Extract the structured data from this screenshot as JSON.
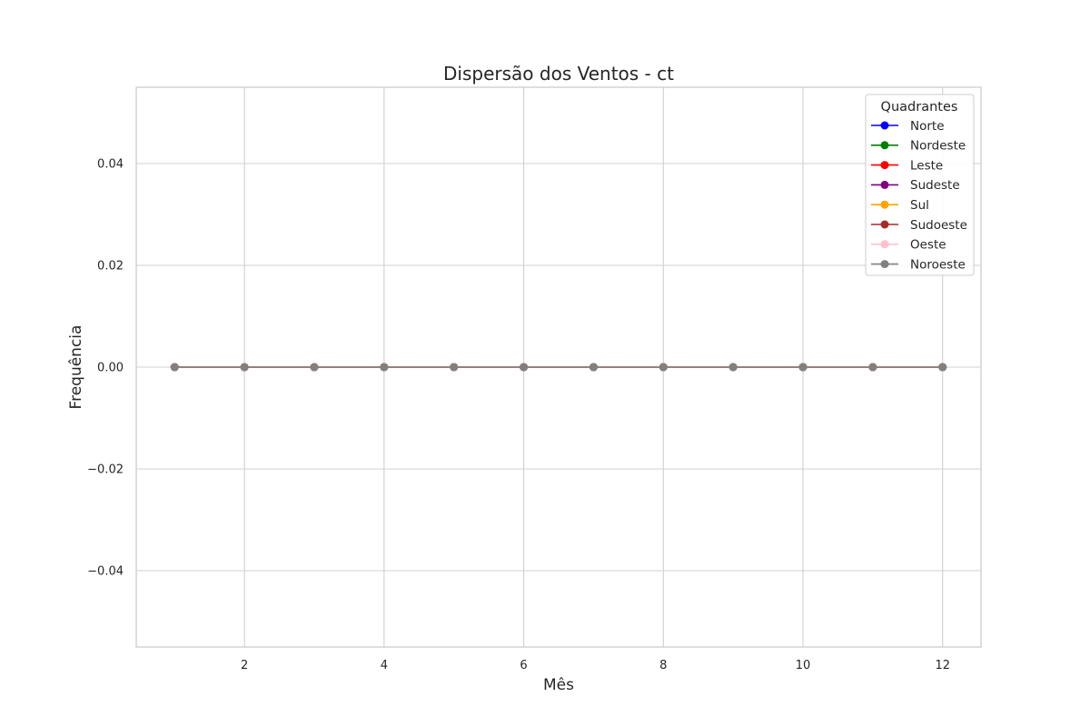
{
  "chart_data": {
    "type": "line",
    "title": "Dispersão dos Ventos - ct",
    "xlabel": "Mês",
    "ylabel": "Frequência",
    "xlim": [
      0.45,
      12.55
    ],
    "ylim": [
      -0.055,
      0.055
    ],
    "x_ticks": [
      2,
      4,
      6,
      8,
      10,
      12
    ],
    "x_tick_labels": [
      "2",
      "4",
      "6",
      "8",
      "10",
      "12"
    ],
    "y_ticks": [
      -0.04,
      -0.02,
      0.0,
      0.02,
      0.04
    ],
    "y_tick_labels": [
      "−0.04",
      "−0.02",
      "0.00",
      "0.02",
      "0.04"
    ],
    "grid": true,
    "legend": {
      "title": "Quadrantes",
      "placement": "top-right"
    },
    "x": [
      1,
      2,
      3,
      4,
      5,
      6,
      7,
      8,
      9,
      10,
      11,
      12
    ],
    "series": [
      {
        "name": "Norte",
        "color": "#0000ff",
        "values": [
          0,
          0,
          0,
          0,
          0,
          0,
          0,
          0,
          0,
          0,
          0,
          0
        ]
      },
      {
        "name": "Nordeste",
        "color": "#008000",
        "values": [
          0,
          0,
          0,
          0,
          0,
          0,
          0,
          0,
          0,
          0,
          0,
          0
        ]
      },
      {
        "name": "Leste",
        "color": "#ff0000",
        "values": [
          0,
          0,
          0,
          0,
          0,
          0,
          0,
          0,
          0,
          0,
          0,
          0
        ]
      },
      {
        "name": "Sudeste",
        "color": "#800080",
        "values": [
          0,
          0,
          0,
          0,
          0,
          0,
          0,
          0,
          0,
          0,
          0,
          0
        ]
      },
      {
        "name": "Sul",
        "color": "#ffa500",
        "values": [
          0,
          0,
          0,
          0,
          0,
          0,
          0,
          0,
          0,
          0,
          0,
          0
        ]
      },
      {
        "name": "Sudoeste",
        "color": "#a52a2a",
        "values": [
          0,
          0,
          0,
          0,
          0,
          0,
          0,
          0,
          0,
          0,
          0,
          0
        ]
      },
      {
        "name": "Oeste",
        "color": "#ffc0cb",
        "values": [
          0,
          0,
          0,
          0,
          0,
          0,
          0,
          0,
          0,
          0,
          0,
          0
        ]
      },
      {
        "name": "Noroeste",
        "color": "#808080",
        "values": [
          0,
          0,
          0,
          0,
          0,
          0,
          0,
          0,
          0,
          0,
          0,
          0
        ]
      }
    ]
  }
}
